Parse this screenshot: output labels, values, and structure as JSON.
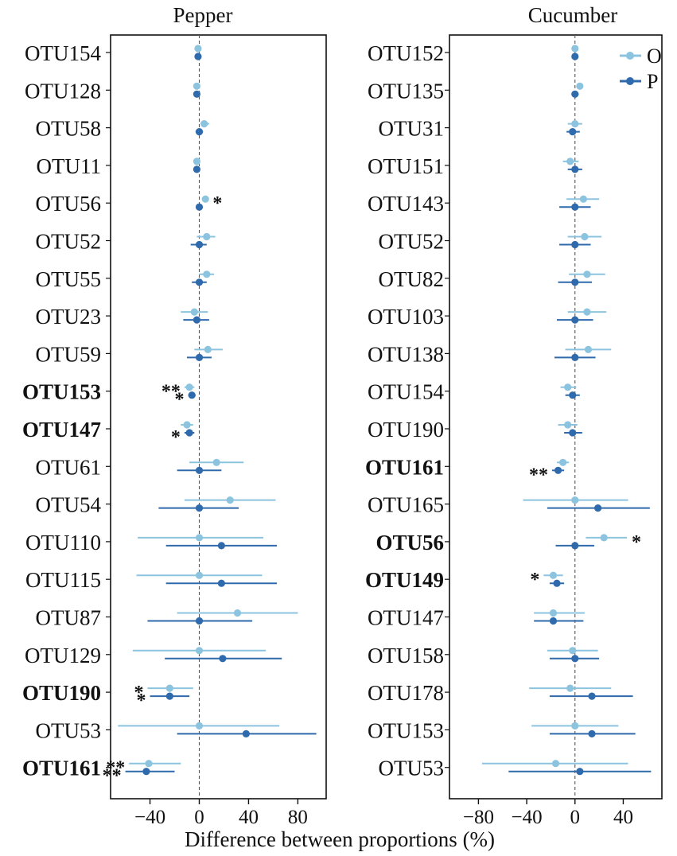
{
  "chart_data": [
    {
      "type": "errorbar",
      "title": "Pepper",
      "xlabel": "",
      "xlim": [
        -72,
        103
      ],
      "xticks": [
        -40,
        0,
        40,
        80
      ],
      "zero_line": "dashed",
      "series": [
        {
          "name": "O",
          "color": "#8cc4e0"
        },
        {
          "name": "P",
          "color": "#2f6aad"
        }
      ],
      "rows": [
        {
          "label": "OTU154",
          "bold": false,
          "O": {
            "v": -1,
            "lo": -2,
            "hi": 0
          },
          "P": {
            "v": -1,
            "lo": -2,
            "hi": 0
          },
          "sigO": "",
          "sigP": ""
        },
        {
          "label": "OTU128",
          "bold": false,
          "O": {
            "v": -2,
            "lo": -4,
            "hi": 0
          },
          "P": {
            "v": -2,
            "lo": -3,
            "hi": 0
          },
          "sigO": "",
          "sigP": ""
        },
        {
          "label": "OTU58",
          "bold": false,
          "O": {
            "v": 4,
            "lo": 1,
            "hi": 8
          },
          "P": {
            "v": 0,
            "lo": -3,
            "hi": 3
          },
          "sigO": "",
          "sigP": ""
        },
        {
          "label": "OTU11",
          "bold": false,
          "O": {
            "v": -2,
            "lo": -4,
            "hi": 0
          },
          "P": {
            "v": -2,
            "lo": -3,
            "hi": 0
          },
          "sigO": "",
          "sigP": ""
        },
        {
          "label": "OTU56",
          "bold": false,
          "O": {
            "v": 5,
            "lo": 4,
            "hi": 7
          },
          "P": {
            "v": 0,
            "lo": -1,
            "hi": 1
          },
          "sigO": "*",
          "sigP": ""
        },
        {
          "label": "OTU52",
          "bold": false,
          "O": {
            "v": 6,
            "lo": -2,
            "hi": 13
          },
          "P": {
            "v": 0,
            "lo": -7,
            "hi": 6
          },
          "sigO": "",
          "sigP": ""
        },
        {
          "label": "OTU55",
          "bold": false,
          "O": {
            "v": 6,
            "lo": 0,
            "hi": 12
          },
          "P": {
            "v": 0,
            "lo": -6,
            "hi": 6
          },
          "sigO": "",
          "sigP": ""
        },
        {
          "label": "OTU23",
          "bold": false,
          "O": {
            "v": -4,
            "lo": -15,
            "hi": 7
          },
          "P": {
            "v": -2,
            "lo": -13,
            "hi": 8
          },
          "sigO": "",
          "sigP": ""
        },
        {
          "label": "OTU59",
          "bold": false,
          "O": {
            "v": 7,
            "lo": -4,
            "hi": 19
          },
          "P": {
            "v": 0,
            "lo": -10,
            "hi": 10
          },
          "sigO": "",
          "sigP": ""
        },
        {
          "label": "OTU153",
          "bold": true,
          "O": {
            "v": -8,
            "lo": -12,
            "hi": -4
          },
          "P": {
            "v": -6,
            "lo": -9,
            "hi": -3
          },
          "sigO": "**",
          "sigP": "*"
        },
        {
          "label": "OTU147",
          "bold": true,
          "O": {
            "v": -10,
            "lo": -15,
            "hi": -5
          },
          "P": {
            "v": -8,
            "lo": -12,
            "hi": -4
          },
          "sigO": "",
          "sigP": "*"
        },
        {
          "label": "OTU61",
          "bold": false,
          "O": {
            "v": 14,
            "lo": -8,
            "hi": 36
          },
          "P": {
            "v": 0,
            "lo": -18,
            "hi": 18
          },
          "sigO": "",
          "sigP": ""
        },
        {
          "label": "OTU54",
          "bold": false,
          "O": {
            "v": 25,
            "lo": -12,
            "hi": 62
          },
          "P": {
            "v": 0,
            "lo": -33,
            "hi": 32
          },
          "sigO": "",
          "sigP": ""
        },
        {
          "label": "OTU110",
          "bold": false,
          "O": {
            "v": 0,
            "lo": -50,
            "hi": 52
          },
          "P": {
            "v": 18,
            "lo": -27,
            "hi": 63
          },
          "sigO": "",
          "sigP": ""
        },
        {
          "label": "OTU115",
          "bold": false,
          "O": {
            "v": 0,
            "lo": -51,
            "hi": 51
          },
          "P": {
            "v": 18,
            "lo": -27,
            "hi": 63
          },
          "sigO": "",
          "sigP": ""
        },
        {
          "label": "OTU87",
          "bold": false,
          "O": {
            "v": 31,
            "lo": -18,
            "hi": 80
          },
          "P": {
            "v": 0,
            "lo": -42,
            "hi": 43
          },
          "sigO": "",
          "sigP": ""
        },
        {
          "label": "OTU129",
          "bold": false,
          "O": {
            "v": 0,
            "lo": -54,
            "hi": 54
          },
          "P": {
            "v": 19,
            "lo": -28,
            "hi": 67
          },
          "sigO": "",
          "sigP": ""
        },
        {
          "label": "OTU190",
          "bold": true,
          "O": {
            "v": -24,
            "lo": -42,
            "hi": -5
          },
          "P": {
            "v": -24,
            "lo": -40,
            "hi": -8
          },
          "sigO": "*",
          "sigP": "*"
        },
        {
          "label": "OTU53",
          "bold": false,
          "O": {
            "v": 0,
            "lo": -66,
            "hi": 65
          },
          "P": {
            "v": 38,
            "lo": -18,
            "hi": 95
          },
          "sigO": "",
          "sigP": ""
        },
        {
          "label": "OTU161",
          "bold": true,
          "O": {
            "v": -41,
            "lo": -57,
            "hi": -15
          },
          "P": {
            "v": -43,
            "lo": -60,
            "hi": -20
          },
          "sigO": "**",
          "sigP": "**"
        }
      ]
    },
    {
      "type": "errorbar",
      "title": "Cucumber",
      "xlabel": "Difference between proportions (%)",
      "xlim": [
        -104,
        72
      ],
      "xticks": [
        -80,
        -40,
        0,
        40
      ],
      "zero_line": "dashed",
      "legend": {
        "position": "top-right",
        "entries": [
          "O",
          "P"
        ]
      },
      "series": [
        {
          "name": "O",
          "color": "#8cc4e0"
        },
        {
          "name": "P",
          "color": "#2f6aad"
        }
      ],
      "rows": [
        {
          "label": "OTU152",
          "bold": false,
          "O": {
            "v": 0,
            "lo": -1,
            "hi": 1
          },
          "P": {
            "v": 0,
            "lo": -1,
            "hi": 1
          },
          "sigO": "",
          "sigP": ""
        },
        {
          "label": "OTU135",
          "bold": false,
          "O": {
            "v": 4,
            "lo": 2,
            "hi": 6
          },
          "P": {
            "v": 0,
            "lo": -2,
            "hi": 3
          },
          "sigO": "",
          "sigP": ""
        },
        {
          "label": "OTU31",
          "bold": false,
          "O": {
            "v": 0,
            "lo": -6,
            "hi": 6
          },
          "P": {
            "v": -2,
            "lo": -7,
            "hi": 4
          },
          "sigO": "",
          "sigP": ""
        },
        {
          "label": "OTU151",
          "bold": false,
          "O": {
            "v": -4,
            "lo": -10,
            "hi": 3
          },
          "P": {
            "v": 0,
            "lo": -6,
            "hi": 6
          },
          "sigO": "",
          "sigP": ""
        },
        {
          "label": "OTU143",
          "bold": false,
          "O": {
            "v": 7,
            "lo": -7,
            "hi": 20
          },
          "P": {
            "v": 0,
            "lo": -13,
            "hi": 13
          },
          "sigO": "",
          "sigP": ""
        },
        {
          "label": "OTU52",
          "bold": false,
          "O": {
            "v": 8,
            "lo": -6,
            "hi": 22
          },
          "P": {
            "v": 0,
            "lo": -13,
            "hi": 13
          },
          "sigO": "",
          "sigP": ""
        },
        {
          "label": "OTU82",
          "bold": false,
          "O": {
            "v": 10,
            "lo": -5,
            "hi": 25
          },
          "P": {
            "v": 0,
            "lo": -14,
            "hi": 14
          },
          "sigO": "",
          "sigP": ""
        },
        {
          "label": "OTU103",
          "bold": false,
          "O": {
            "v": 10,
            "lo": -6,
            "hi": 26
          },
          "P": {
            "v": 0,
            "lo": -15,
            "hi": 15
          },
          "sigO": "",
          "sigP": ""
        },
        {
          "label": "OTU138",
          "bold": false,
          "O": {
            "v": 11,
            "lo": -8,
            "hi": 30
          },
          "P": {
            "v": 0,
            "lo": -17,
            "hi": 17
          },
          "sigO": "",
          "sigP": ""
        },
        {
          "label": "OTU154",
          "bold": false,
          "O": {
            "v": -6,
            "lo": -12,
            "hi": 1
          },
          "P": {
            "v": -2,
            "lo": -8,
            "hi": 4
          },
          "sigO": "",
          "sigP": ""
        },
        {
          "label": "OTU190",
          "bold": false,
          "O": {
            "v": -6,
            "lo": -14,
            "hi": 2
          },
          "P": {
            "v": -2,
            "lo": -9,
            "hi": 6
          },
          "sigO": "",
          "sigP": ""
        },
        {
          "label": "OTU161",
          "bold": true,
          "O": {
            "v": -10,
            "lo": -15,
            "hi": -5
          },
          "P": {
            "v": -14,
            "lo": -19,
            "hi": -9
          },
          "sigO": "",
          "sigP": "**"
        },
        {
          "label": "OTU165",
          "bold": false,
          "O": {
            "v": 0,
            "lo": -43,
            "hi": 44
          },
          "P": {
            "v": 19,
            "lo": -23,
            "hi": 62
          },
          "sigO": "",
          "sigP": ""
        },
        {
          "label": "OTU56",
          "bold": true,
          "O": {
            "v": 24,
            "lo": 9,
            "hi": 43
          },
          "P": {
            "v": 0,
            "lo": -16,
            "hi": 16
          },
          "sigO": "*",
          "sigP": ""
        },
        {
          "label": "OTU149",
          "bold": true,
          "O": {
            "v": -18,
            "lo": -26,
            "hi": -10
          },
          "P": {
            "v": -15,
            "lo": -21,
            "hi": -9
          },
          "sigO": "*",
          "sigP": ""
        },
        {
          "label": "OTU147",
          "bold": false,
          "O": {
            "v": -18,
            "lo": -34,
            "hi": 8
          },
          "P": {
            "v": -18,
            "lo": -34,
            "hi": 7
          },
          "sigO": "",
          "sigP": ""
        },
        {
          "label": "OTU158",
          "bold": false,
          "O": {
            "v": -2,
            "lo": -23,
            "hi": 19
          },
          "P": {
            "v": 0,
            "lo": -21,
            "hi": 20
          },
          "sigO": "",
          "sigP": ""
        },
        {
          "label": "OTU178",
          "bold": false,
          "O": {
            "v": -4,
            "lo": -38,
            "hi": 30
          },
          "P": {
            "v": 14,
            "lo": -21,
            "hi": 48
          },
          "sigO": "",
          "sigP": ""
        },
        {
          "label": "OTU153",
          "bold": false,
          "O": {
            "v": 0,
            "lo": -36,
            "hi": 36
          },
          "P": {
            "v": 14,
            "lo": -21,
            "hi": 50
          },
          "sigO": "",
          "sigP": ""
        },
        {
          "label": "OTU53",
          "bold": false,
          "O": {
            "v": -16,
            "lo": -77,
            "hi": 44
          },
          "P": {
            "v": 4,
            "lo": -55,
            "hi": 63
          },
          "sigO": "",
          "sigP": ""
        }
      ]
    }
  ]
}
